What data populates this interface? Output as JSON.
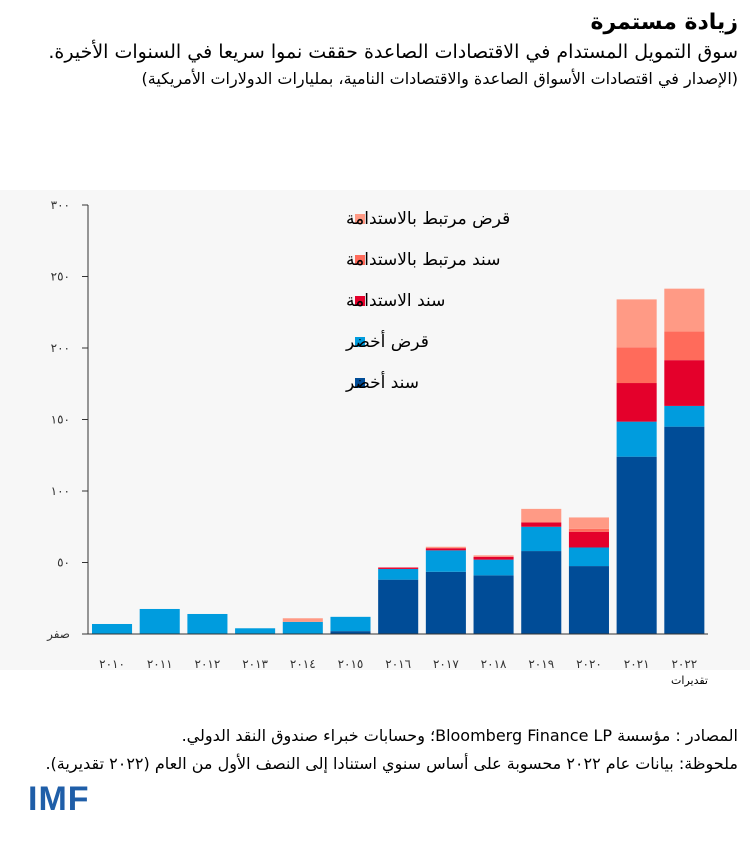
{
  "header": {
    "title": "زيادة مستمرة",
    "subtitle": "سوق التمويل المستدام في الاقتصادات الصاعدة حققت نموا سريعا في السنوات الأخيرة.",
    "unit": "(الإصدار في اقتصادات الأسواق الصاعدة والاقتصادات النامية، بمليارات الدولارات الأمريكية)"
  },
  "chart_data": {
    "type": "bar",
    "stacked": true,
    "categories": [
      "٢٠١٠",
      "٢٠١١",
      "٢٠١٢",
      "٢٠١٣",
      "٢٠١٤",
      "٢٠١٥",
      "٢٠١٦",
      "٢٠١٧",
      "٢٠١٨",
      "٢٠١٩",
      "٢٠٢٠",
      "٢٠٢١",
      "٢٠٢٢"
    ],
    "x_note": "تقديرات",
    "ylim": [
      0,
      300
    ],
    "yticks": [
      0,
      50,
      100,
      150,
      200,
      250,
      300
    ],
    "ytick_labels": [
      "صفر",
      "٥٠",
      "١٠٠",
      "١٥٠",
      "٢٠٠",
      "٢٥٠",
      "٣٠٠"
    ],
    "grid": false,
    "legend_position": "top-left",
    "series": [
      {
        "name": "سند أخضر",
        "color": "#004c97",
        "values": [
          0,
          0,
          0,
          0,
          0,
          2,
          38,
          43.5,
          41,
          58,
          47.5,
          124,
          145
        ]
      },
      {
        "name": "قرض أخضر",
        "color": "#009cde",
        "values": [
          7,
          17.5,
          14,
          4,
          8.5,
          10,
          7.5,
          15,
          11,
          17,
          13,
          24.5,
          14.5
        ]
      },
      {
        "name": "سند الاستدامة",
        "color": "#e4002b",
        "values": [
          0,
          0,
          0,
          0,
          0,
          0,
          1,
          1.5,
          2,
          3,
          11,
          27,
          32
        ]
      },
      {
        "name": "سند مرتبط بالاستدامة",
        "color": "#ff6b5b",
        "values": [
          0,
          0,
          0,
          0,
          0,
          0,
          0,
          0,
          0,
          0,
          2,
          25,
          20
        ]
      },
      {
        "name": "قرض مرتبط بالاستدامة",
        "color": "#ff9a85",
        "values": [
          0,
          0,
          0,
          0,
          2.5,
          0,
          0,
          1,
          1,
          9.5,
          8,
          33.5,
          30
        ]
      }
    ]
  },
  "footer": {
    "sources": "المصادر : مؤسسة Bloomberg Finance LP؛ وحسابات خبراء صندوق النقد الدولي.",
    "note": "ملحوظة: بيانات عام ٢٠٢٢ محسوبة على أساس سنوي استنادا إلى النصف الأول من العام (٢٠٢٢ تقديرية).",
    "logo": "IMF"
  }
}
